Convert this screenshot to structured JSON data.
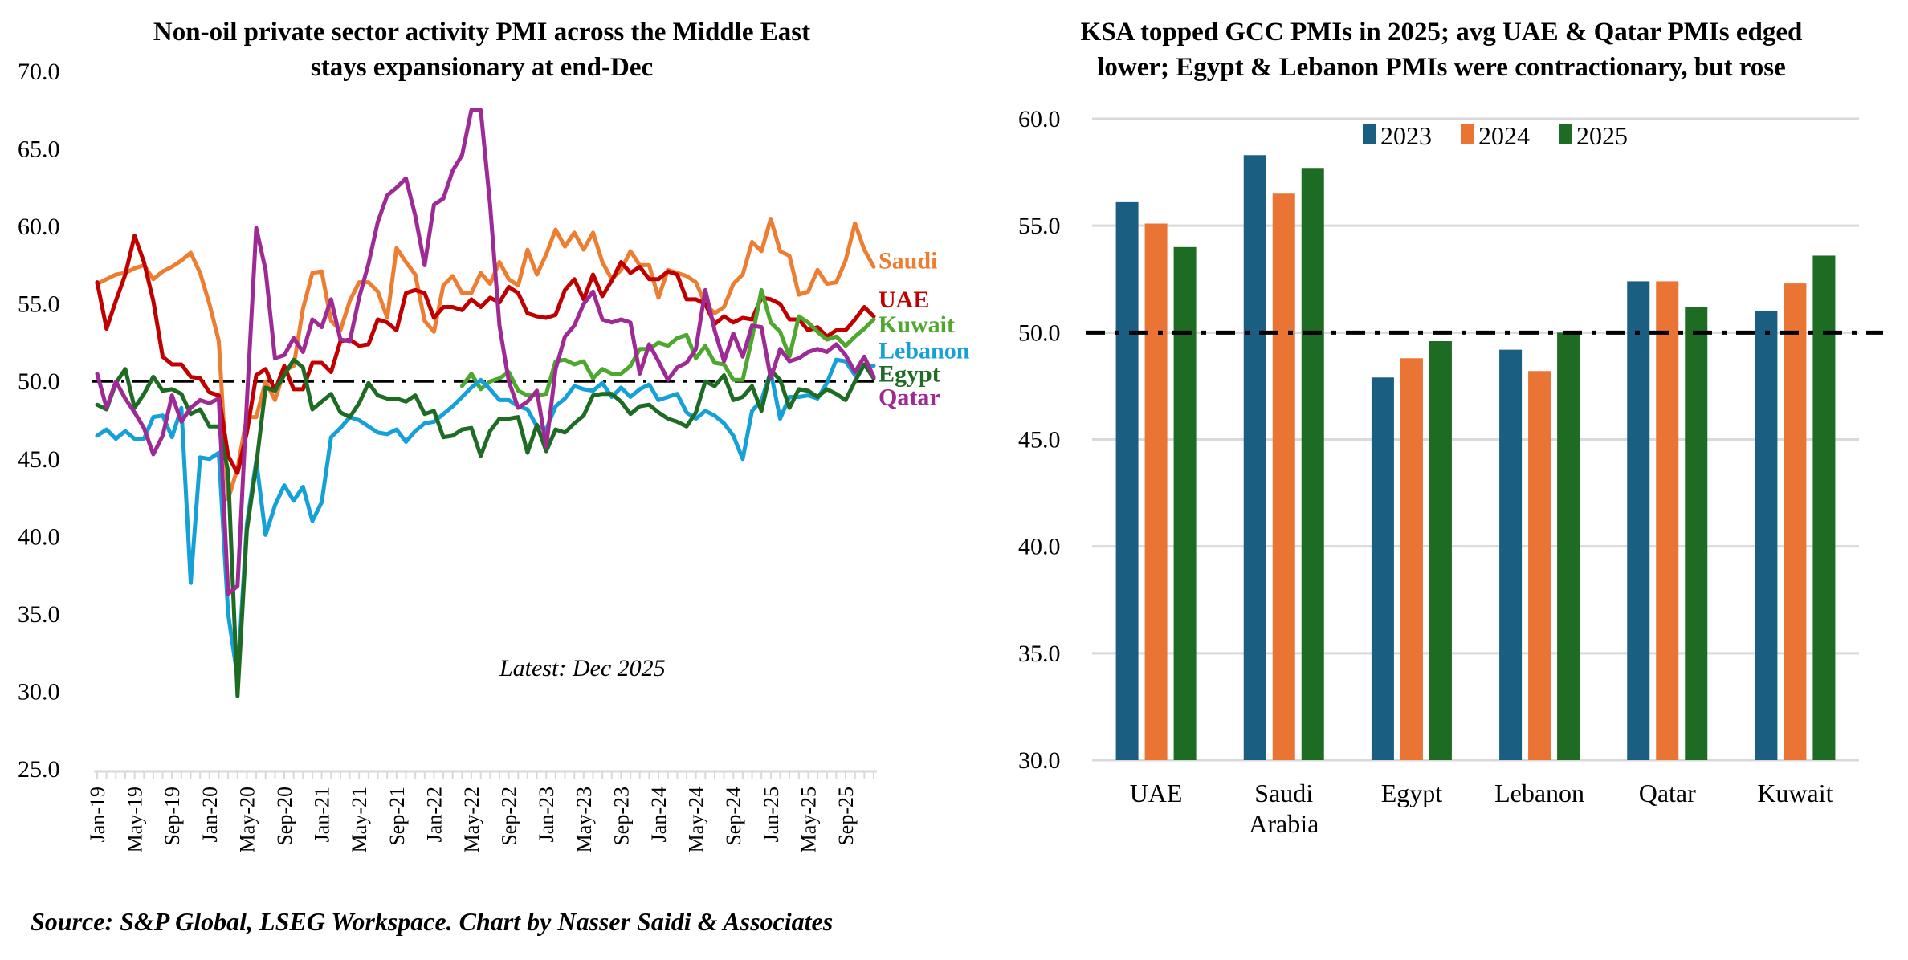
{
  "source_note": "Source: S&P Global, LSEG Workspace. Chart by Nasser Saidi & Associates",
  "chart_data": [
    {
      "type": "line",
      "title": "Non-oil private sector activity PMI across the Middle East stays expansionary at end-Dec",
      "title_lines": [
        "Non-oil private sector activity PMI across the Middle East",
        "stays expansionary at end-Dec"
      ],
      "xlabel": "",
      "ylabel": "",
      "ylim": [
        25,
        70
      ],
      "yticks": [
        "25.0",
        "30.0",
        "35.0",
        "40.0",
        "45.0",
        "50.0",
        "55.0",
        "60.0",
        "65.0",
        "70.0"
      ],
      "x_start": "Jan-19",
      "x_end": "Dec-25",
      "x_count": 84,
      "xtick_labels": [
        "Jan-19",
        "May-19",
        "Sep-19",
        "Jan-20",
        "May-20",
        "Sep-20",
        "Jan-21",
        "May-21",
        "Sep-21",
        "Jan-22",
        "May-22",
        "Sep-22",
        "Jan-23",
        "May-23",
        "Sep-23",
        "Jan-24",
        "May-24",
        "Sep-24",
        "Jan-25",
        "May-25",
        "Sep-25"
      ],
      "xtick_every": 4,
      "reference_line": {
        "value": 50,
        "style": "dash-dot",
        "color": "#000000"
      },
      "annotation": "Latest: Dec 2025",
      "grid": false,
      "legend": "inline-right",
      "series": [
        {
          "name": "Saudi",
          "color": "#ed7d31",
          "start_index": 0,
          "values": [
            56.3,
            56.6,
            56.9,
            57.0,
            57.3,
            57.5,
            56.6,
            57.1,
            57.4,
            57.8,
            58.3,
            57.0,
            55.0,
            52.6,
            42.4,
            44.4,
            47.7,
            47.7,
            50.0,
            48.8,
            50.7,
            51.0,
            54.7,
            57.0,
            57.1,
            53.9,
            53.3,
            55.2,
            56.4,
            56.4,
            55.8,
            54.1,
            58.6,
            57.7,
            56.9,
            53.9,
            53.2,
            56.2,
            56.8,
            55.7,
            55.7,
            57.0,
            56.3,
            57.7,
            56.6,
            56.2,
            58.5,
            56.9,
            58.2,
            59.8,
            58.7,
            59.6,
            58.5,
            59.6,
            57.7,
            56.6,
            57.2,
            58.4,
            57.5,
            57.5,
            55.4,
            57.2,
            57.0,
            56.8,
            56.4,
            55.0,
            54.4,
            54.8,
            56.3,
            56.9,
            59.0,
            58.4,
            60.5,
            58.4,
            58.1,
            55.6,
            55.8,
            57.2,
            56.3,
            56.4,
            57.8,
            60.2,
            58.5,
            57.4
          ]
        },
        {
          "name": "UAE",
          "color": "#c00000",
          "start_index": 0,
          "values": [
            56.4,
            53.4,
            55.2,
            56.9,
            59.4,
            57.7,
            55.2,
            51.6,
            51.1,
            51.1,
            50.3,
            50.2,
            49.3,
            49.1,
            45.2,
            44.1,
            46.7,
            50.4,
            50.8,
            49.4,
            51.0,
            49.5,
            49.5,
            51.2,
            51.2,
            50.6,
            52.6,
            52.7,
            52.3,
            52.4,
            54.0,
            53.8,
            53.3,
            55.7,
            55.9,
            55.7,
            54.1,
            54.8,
            54.8,
            54.6,
            55.3,
            54.8,
            55.4,
            55.1,
            56.1,
            55.7,
            54.4,
            54.2,
            54.1,
            54.3,
            55.9,
            56.6,
            55.3,
            56.9,
            55.5,
            56.5,
            57.7,
            57.0,
            57.4,
            56.6,
            56.6,
            57.1,
            56.9,
            55.3,
            55.3,
            55.0,
            53.7,
            54.2,
            53.8,
            54.1,
            54.0,
            55.4,
            55.3,
            55.0,
            54.0,
            54.0,
            53.3,
            53.5,
            52.9,
            53.3,
            53.3,
            54.0,
            54.8,
            54.2
          ]
        },
        {
          "name": "Kuwait",
          "color": "#4ea72e",
          "start_index": 39,
          "values": [
            49.7,
            50.5,
            49.5,
            50.0,
            50.2,
            50.6,
            49.4,
            49.1,
            49.1,
            49.2,
            51.3,
            51.4,
            51.1,
            51.3,
            50.2,
            50.8,
            50.5,
            50.5,
            51.0,
            52.1,
            52.1,
            52.5,
            52.3,
            52.8,
            53.0,
            51.5,
            52.3,
            51.2,
            51.1,
            50.1,
            50.1,
            52.8,
            55.9,
            53.8,
            53.2,
            51.6,
            54.2,
            53.8,
            53.2,
            52.7,
            52.9,
            52.3,
            52.9,
            53.4,
            54.0
          ]
        },
        {
          "name": "Lebanon",
          "color": "#15a0d8",
          "start_index": 0,
          "values": [
            46.5,
            46.9,
            46.3,
            46.8,
            46.3,
            46.3,
            47.7,
            47.8,
            46.4,
            48.3,
            37.0,
            45.1,
            45.0,
            45.4,
            35.0,
            30.9,
            40.8,
            44.9,
            40.1,
            42.0,
            43.3,
            42.3,
            43.2,
            41.0,
            42.2,
            46.4,
            47.0,
            47.7,
            47.5,
            47.1,
            46.7,
            46.6,
            46.9,
            46.1,
            46.8,
            47.3,
            47.4,
            47.9,
            48.4,
            49.0,
            49.6,
            50.1,
            49.5,
            48.8,
            48.8,
            48.4,
            48.2,
            47.1,
            46.9,
            48.4,
            48.9,
            49.7,
            49.5,
            49.4,
            49.9,
            49.0,
            49.6,
            49.0,
            49.5,
            49.8,
            48.8,
            49.0,
            49.2,
            48.0,
            47.6,
            48.1,
            47.8,
            47.3,
            46.5,
            45.0,
            48.1,
            48.8,
            50.6,
            47.6,
            49.0,
            49.0,
            49.1,
            48.9,
            49.9,
            51.4,
            51.3,
            50.4,
            51.0,
            51.0
          ]
        },
        {
          "name": "Egypt",
          "color": "#1e6b24",
          "start_index": 0,
          "values": [
            48.5,
            48.2,
            49.9,
            50.8,
            48.3,
            49.2,
            50.3,
            49.4,
            49.5,
            49.2,
            47.9,
            48.2,
            47.1,
            47.1,
            44.2,
            29.7,
            40.4,
            44.6,
            49.6,
            49.4,
            50.4,
            51.4,
            50.9,
            48.2,
            48.7,
            49.2,
            48.0,
            47.7,
            48.6,
            49.9,
            49.1,
            48.9,
            48.9,
            48.7,
            49.1,
            47.9,
            48.1,
            46.4,
            46.5,
            46.9,
            47.0,
            45.2,
            46.8,
            47.6,
            47.6,
            47.7,
            45.4,
            47.2,
            45.5,
            46.9,
            46.7,
            47.3,
            47.8,
            49.1,
            49.2,
            49.2,
            48.7,
            47.9,
            48.4,
            48.5,
            48.0,
            47.6,
            47.4,
            47.1,
            48.0,
            50.0,
            49.7,
            50.4,
            48.8,
            49.0,
            49.7,
            48.1,
            50.7,
            50.1,
            48.3,
            49.5,
            49.4,
            49.0,
            49.5,
            49.2,
            48.8,
            50.0,
            51.1,
            50.2
          ]
        },
        {
          "name": "Qatar",
          "color": "#9e2a96",
          "start_index": 0,
          "values": [
            50.5,
            48.3,
            50.0,
            48.9,
            48.0,
            47.0,
            45.3,
            46.5,
            49.1,
            47.4,
            48.3,
            48.8,
            48.6,
            48.9,
            36.3,
            36.8,
            48.7,
            59.9,
            57.2,
            51.5,
            51.7,
            52.8,
            51.9,
            54.0,
            53.5,
            55.3,
            52.7,
            52.6,
            55.4,
            57.6,
            60.3,
            62.0,
            62.5,
            63.1,
            60.7,
            57.5,
            61.4,
            61.8,
            63.6,
            64.6,
            67.5,
            67.5,
            61.4,
            53.6,
            50.0,
            48.3,
            48.7,
            49.4,
            45.8,
            50.8,
            52.9,
            53.6,
            55.0,
            55.8,
            54.0,
            53.8,
            54.0,
            53.8,
            50.5,
            52.4,
            51.3,
            50.1,
            50.9,
            51.2,
            52.1,
            55.9,
            53.3,
            51.3,
            53.1,
            51.6,
            53.6,
            53.5,
            50.2,
            52.1,
            51.3,
            51.5,
            51.9,
            52.1,
            51.9,
            52.4,
            51.7,
            50.6,
            51.6,
            50.3
          ]
        }
      ]
    },
    {
      "type": "bar",
      "title": "KSA topped GCC PMIs in 2025; avg UAE & Qatar PMIs edged lower; Egypt & Lebanon PMIs were contractionary, but rose",
      "title_lines": [
        "KSA topped GCC PMIs in 2025; avg UAE & Qatar PMIs edged",
        "lower; Egypt & Lebanon PMIs were contractionary, but rose"
      ],
      "xlabel": "",
      "ylabel": "",
      "ylim": [
        30,
        60
      ],
      "yticks": [
        "30.0",
        "35.0",
        "40.0",
        "45.0",
        "50.0",
        "55.0",
        "60.0"
      ],
      "grid": true,
      "legend": "top-center",
      "reference_line": {
        "value": 50,
        "style": "dash-dot",
        "color": "#000000"
      },
      "categories": [
        "UAE",
        "Saudi Arabia",
        "Egypt",
        "Lebanon",
        "Qatar",
        "Kuwait"
      ],
      "category_lines": [
        [
          "UAE"
        ],
        [
          "Saudi",
          "Arabia"
        ],
        [
          "Egypt"
        ],
        [
          "Lebanon"
        ],
        [
          "Qatar"
        ],
        [
          "Kuwait"
        ]
      ],
      "series": [
        {
          "name": "2023",
          "color": "#1a5f82",
          "values": [
            56.1,
            58.3,
            47.9,
            49.2,
            52.4,
            51.0
          ]
        },
        {
          "name": "2024",
          "color": "#e97434",
          "values": [
            55.1,
            56.5,
            48.8,
            48.2,
            52.4,
            52.3
          ]
        },
        {
          "name": "2025",
          "color": "#1e6b24",
          "values": [
            54.0,
            57.7,
            49.6,
            50.0,
            51.2,
            53.6
          ]
        }
      ]
    }
  ]
}
